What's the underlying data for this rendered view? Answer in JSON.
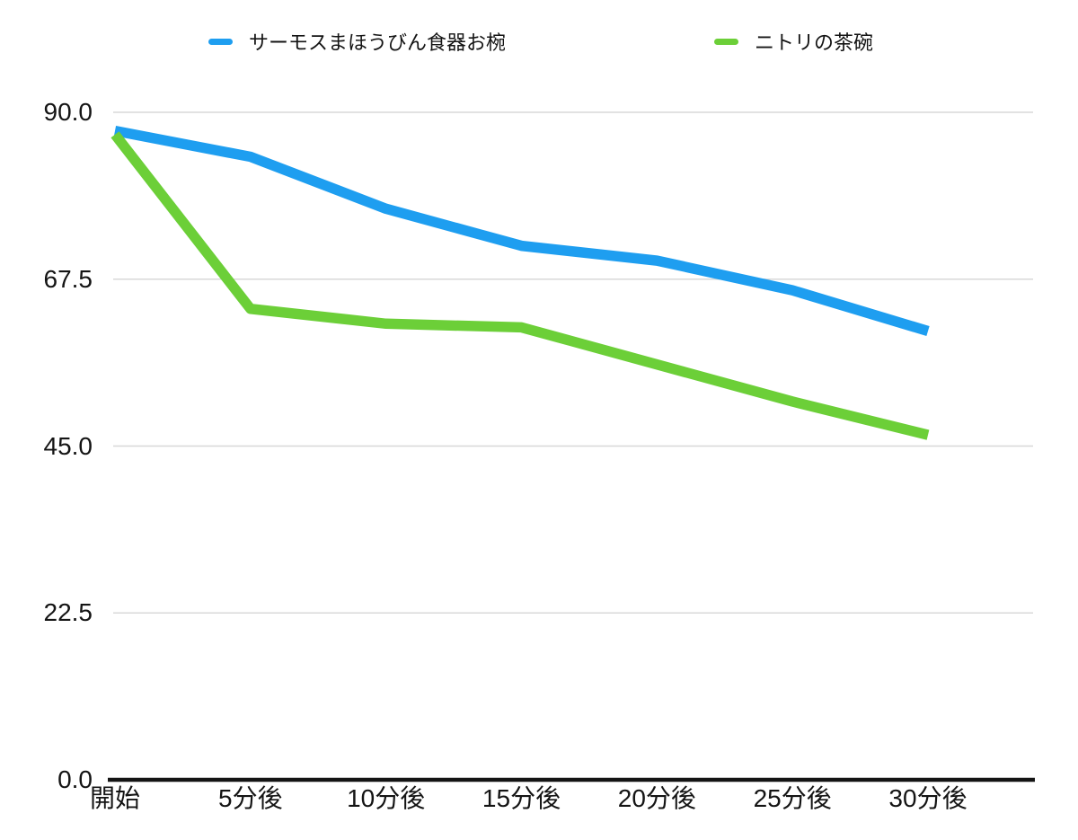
{
  "chart_data": {
    "type": "line",
    "title": "",
    "xlabel": "",
    "ylabel": "",
    "categories": [
      "開始",
      "5分後",
      "10分後",
      "15分後",
      "20分後",
      "25分後",
      "30分後"
    ],
    "series": [
      {
        "name": "サーモスまほうびん食器お椀",
        "slug": "thermos-bowl",
        "color": "#1E9EF0",
        "values": [
          87.5,
          84.0,
          77.0,
          72.0,
          70.0,
          66.0,
          60.5
        ]
      },
      {
        "name": "ニトリの茶碗",
        "slug": "nitori-bowl",
        "color": "#6CCF38",
        "values": [
          87.0,
          63.5,
          61.5,
          61.0,
          56.0,
          51.0,
          46.5
        ]
      }
    ],
    "ylim": [
      0,
      90
    ],
    "yticks": [
      "0.0",
      "22.5",
      "45.0",
      "67.5",
      "90.0"
    ],
    "ytick_values": [
      0,
      22.5,
      45,
      67.5,
      90
    ],
    "grid": true,
    "legend_position": "top",
    "colors": {
      "background": "#FFFFFF",
      "gridline": "#D8D8D8",
      "axis": "#141414",
      "tick_text": "#141414"
    }
  }
}
